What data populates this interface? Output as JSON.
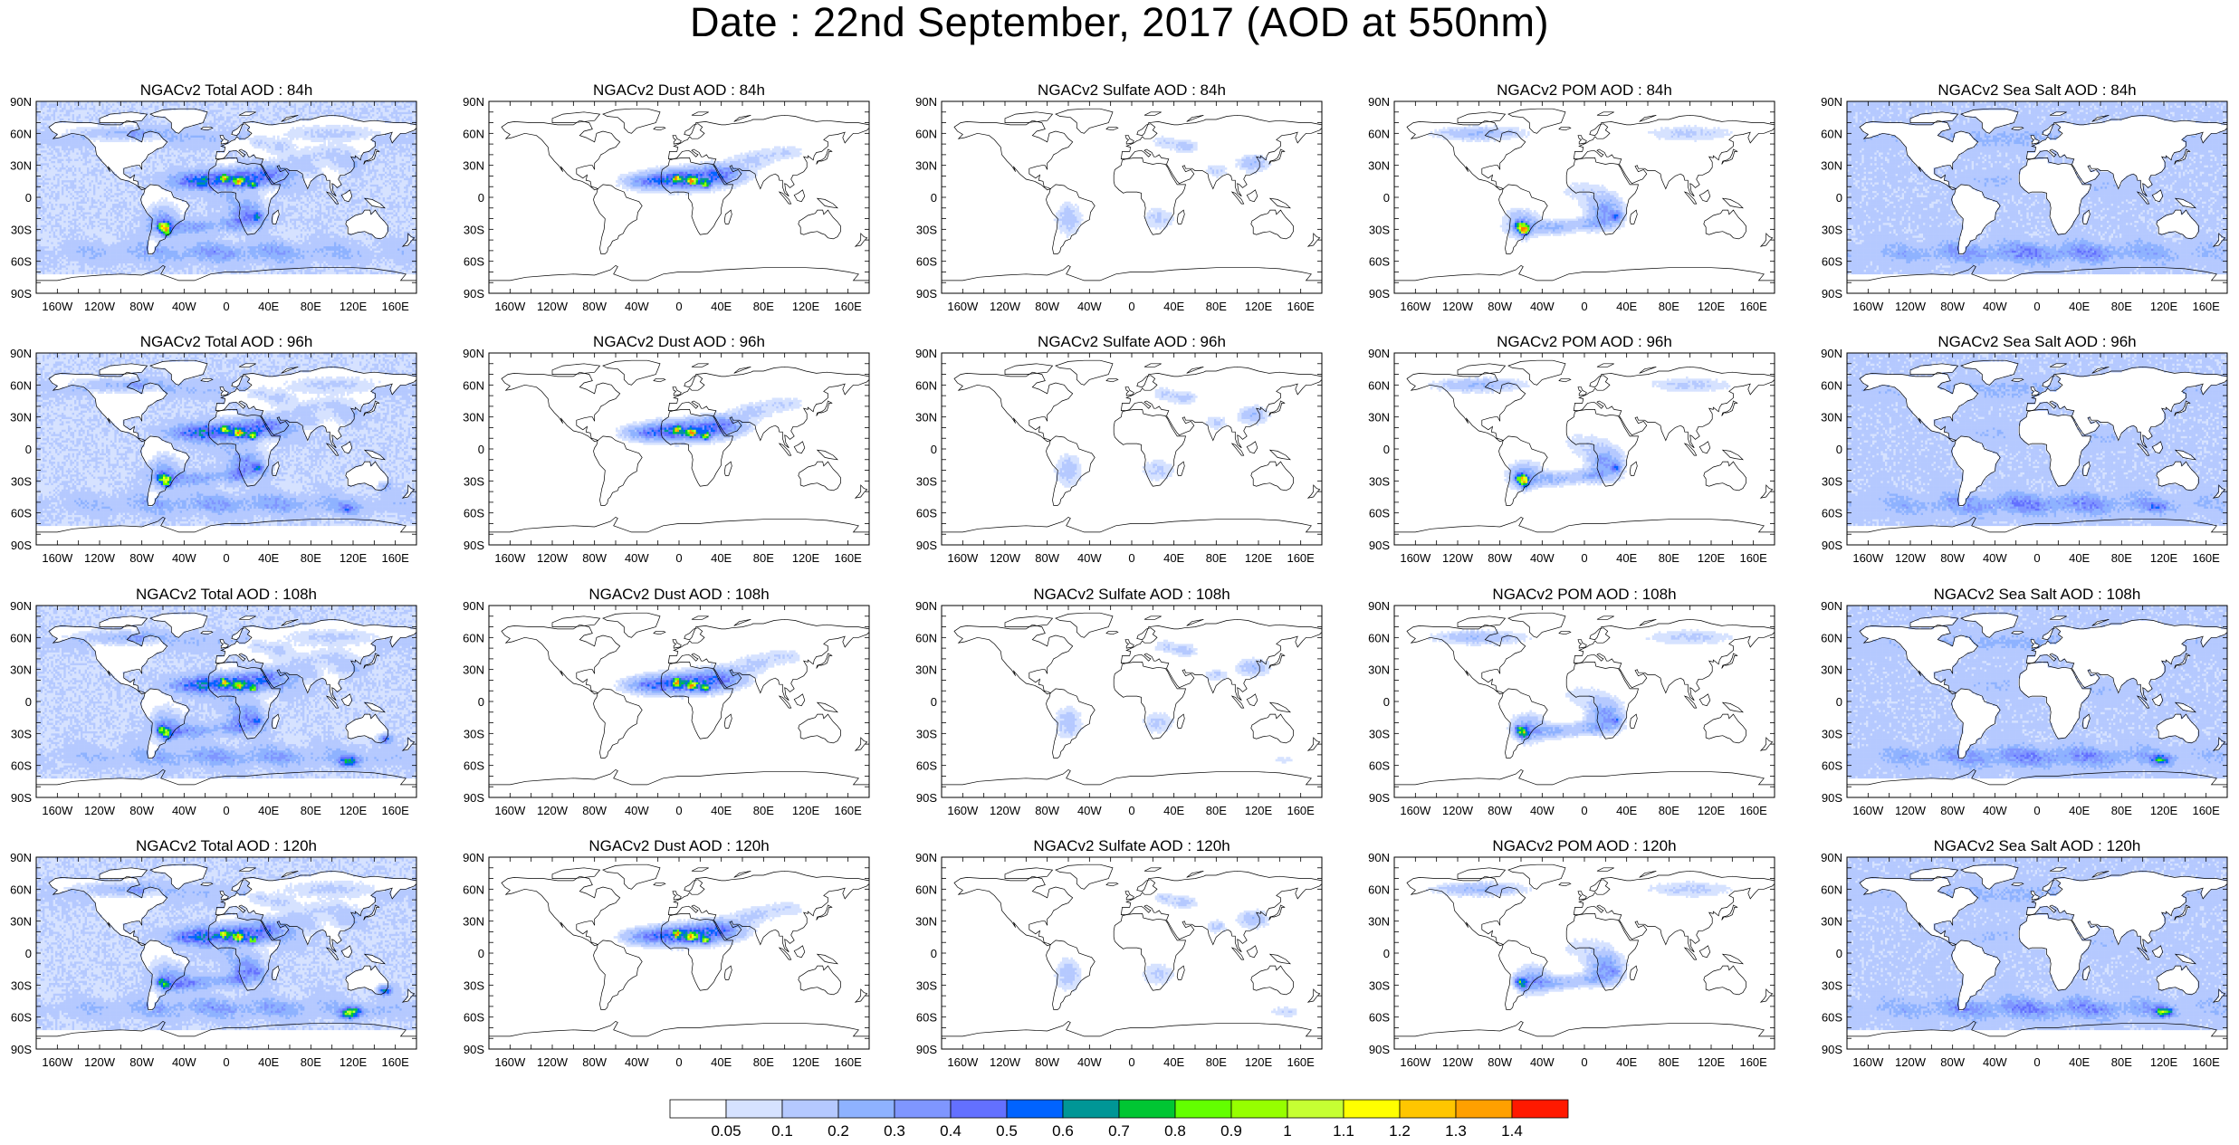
{
  "title": "Date : 22nd September, 2017 (AOD at 550nm)",
  "panels": [
    {
      "title": "NGACv2 Total AOD : 84h",
      "species": "total",
      "hour": 84
    },
    {
      "title": "NGACv2 Dust AOD : 84h",
      "species": "dust",
      "hour": 84
    },
    {
      "title": "NGACv2 Sulfate AOD : 84h",
      "species": "sulfate",
      "hour": 84
    },
    {
      "title": "NGACv2 POM AOD : 84h",
      "species": "pom",
      "hour": 84
    },
    {
      "title": "NGACv2 Sea Salt AOD : 84h",
      "species": "seasalt",
      "hour": 84
    },
    {
      "title": "NGACv2 Total AOD : 96h",
      "species": "total",
      "hour": 96
    },
    {
      "title": "NGACv2 Dust AOD : 96h",
      "species": "dust",
      "hour": 96
    },
    {
      "title": "NGACv2 Sulfate AOD : 96h",
      "species": "sulfate",
      "hour": 96
    },
    {
      "title": "NGACv2 POM AOD : 96h",
      "species": "pom",
      "hour": 96
    },
    {
      "title": "NGACv2 Sea Salt AOD : 96h",
      "species": "seasalt",
      "hour": 96
    },
    {
      "title": "NGACv2 Total AOD : 108h",
      "species": "total",
      "hour": 108
    },
    {
      "title": "NGACv2 Dust AOD : 108h",
      "species": "dust",
      "hour": 108
    },
    {
      "title": "NGACv2 Sulfate AOD : 108h",
      "species": "sulfate",
      "hour": 108
    },
    {
      "title": "NGACv2 POM AOD : 108h",
      "species": "pom",
      "hour": 108
    },
    {
      "title": "NGACv2 Sea Salt AOD : 108h",
      "species": "seasalt",
      "hour": 108
    },
    {
      "title": "NGACv2 Total AOD : 120h",
      "species": "total",
      "hour": 120
    },
    {
      "title": "NGACv2 Dust AOD : 120h",
      "species": "dust",
      "hour": 120
    },
    {
      "title": "NGACv2 Sulfate AOD : 120h",
      "species": "sulfate",
      "hour": 120
    },
    {
      "title": "NGACv2 POM AOD : 120h",
      "species": "pom",
      "hour": 120
    },
    {
      "title": "NGACv2 Sea Salt  AOD : 120h",
      "species": "seasalt",
      "hour": 120
    }
  ],
  "axes": {
    "lat_ticks": [
      {
        "value": 90,
        "label": "90N"
      },
      {
        "value": 60,
        "label": "60N"
      },
      {
        "value": 30,
        "label": "30N"
      },
      {
        "value": 0,
        "label": "0"
      },
      {
        "value": -30,
        "label": "30S"
      },
      {
        "value": -60,
        "label": "60S"
      },
      {
        "value": -90,
        "label": "90S"
      }
    ],
    "lon_ticks": [
      {
        "value": -160,
        "label": "160W"
      },
      {
        "value": -120,
        "label": "120W"
      },
      {
        "value": -80,
        "label": "80W"
      },
      {
        "value": -40,
        "label": "40W"
      },
      {
        "value": 0,
        "label": "0"
      },
      {
        "value": 40,
        "label": "40E"
      },
      {
        "value": 80,
        "label": "80E"
      },
      {
        "value": 120,
        "label": "120E"
      },
      {
        "value": 160,
        "label": "160E"
      }
    ],
    "lon_range": [
      -180,
      180
    ],
    "lat_range": [
      -90,
      90
    ]
  },
  "colorbar": {
    "colors": [
      "#ffffff",
      "#d6e2ff",
      "#b5c9ff",
      "#8eb2ff",
      "#7f96ff",
      "#6370ff",
      "#0063ff",
      "#009696",
      "#00c633",
      "#63ff00",
      "#96ff00",
      "#c6ff33",
      "#ffff00",
      "#ffc600",
      "#ffa000",
      "#ff7c00",
      "#ff1900"
    ],
    "labels": [
      "0.05",
      "0.1",
      "0.2",
      "0.3",
      "0.4",
      "0.5",
      "0.6",
      "0.7",
      "0.8",
      "0.9",
      "1",
      "1.1",
      "1.2",
      "1.3",
      "1.4"
    ]
  }
}
